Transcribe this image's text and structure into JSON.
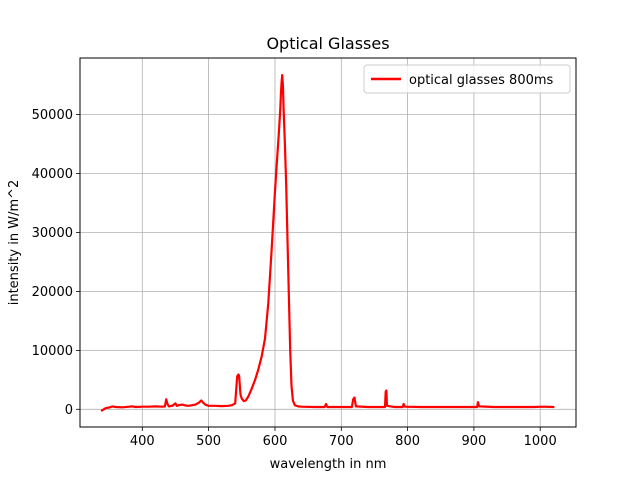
{
  "chart_data": {
    "type": "line",
    "title": "Optical Glasses",
    "xlabel": "wavelength in nm",
    "ylabel": "intensity in W/m^2",
    "xlim": [
      306,
      1054
    ],
    "ylim": [
      -3000,
      59600
    ],
    "xticks": [
      400,
      500,
      600,
      700,
      800,
      900,
      1000
    ],
    "yticks": [
      0,
      10000,
      20000,
      30000,
      40000,
      50000
    ],
    "grid": true,
    "legend_position": "top-right",
    "series": [
      {
        "name": "optical glasses 800ms",
        "color": "#ff0000",
        "points": [
          [
            339,
            -200
          ],
          [
            345,
            200
          ],
          [
            350,
            300
          ],
          [
            355,
            500
          ],
          [
            360,
            400
          ],
          [
            370,
            350
          ],
          [
            380,
            450
          ],
          [
            385,
            500
          ],
          [
            390,
            400
          ],
          [
            400,
            450
          ],
          [
            410,
            450
          ],
          [
            420,
            500
          ],
          [
            430,
            450
          ],
          [
            434,
            500
          ],
          [
            436,
            1700
          ],
          [
            438,
            900
          ],
          [
            440,
            500
          ],
          [
            445,
            600
          ],
          [
            450,
            1000
          ],
          [
            452,
            600
          ],
          [
            455,
            700
          ],
          [
            460,
            800
          ],
          [
            465,
            650
          ],
          [
            470,
            600
          ],
          [
            475,
            700
          ],
          [
            480,
            800
          ],
          [
            485,
            1100
          ],
          [
            489,
            1500
          ],
          [
            492,
            1100
          ],
          [
            495,
            800
          ],
          [
            500,
            600
          ],
          [
            510,
            600
          ],
          [
            520,
            550
          ],
          [
            530,
            600
          ],
          [
            535,
            700
          ],
          [
            540,
            1000
          ],
          [
            542,
            4000
          ],
          [
            543,
            5600
          ],
          [
            545,
            5900
          ],
          [
            546,
            5700
          ],
          [
            548,
            2500
          ],
          [
            550,
            1800
          ],
          [
            553,
            1400
          ],
          [
            556,
            1500
          ],
          [
            560,
            2200
          ],
          [
            565,
            3500
          ],
          [
            570,
            5000
          ],
          [
            575,
            6800
          ],
          [
            580,
            9000
          ],
          [
            585,
            12000
          ],
          [
            590,
            18000
          ],
          [
            595,
            27000
          ],
          [
            600,
            37000
          ],
          [
            603,
            42000
          ],
          [
            606,
            47000
          ],
          [
            608,
            51000
          ],
          [
            609,
            53500
          ],
          [
            610,
            55500
          ],
          [
            611,
            56700
          ],
          [
            612,
            55000
          ],
          [
            613,
            51000
          ],
          [
            615,
            45000
          ],
          [
            617,
            38000
          ],
          [
            619,
            28000
          ],
          [
            621,
            19000
          ],
          [
            623,
            10000
          ],
          [
            625,
            4000
          ],
          [
            627,
            1500
          ],
          [
            630,
            700
          ],
          [
            635,
            500
          ],
          [
            640,
            450
          ],
          [
            660,
            400
          ],
          [
            675,
            400
          ],
          [
            677,
            900
          ],
          [
            679,
            400
          ],
          [
            700,
            400
          ],
          [
            716,
            400
          ],
          [
            718,
            1700
          ],
          [
            720,
            2000
          ],
          [
            722,
            500
          ],
          [
            740,
            400
          ],
          [
            766,
            400
          ],
          [
            767,
            3000
          ],
          [
            768,
            3200
          ],
          [
            769,
            600
          ],
          [
            780,
            400
          ],
          [
            793,
            400
          ],
          [
            794,
            900
          ],
          [
            796,
            450
          ],
          [
            820,
            400
          ],
          [
            850,
            400
          ],
          [
            880,
            400
          ],
          [
            905,
            400
          ],
          [
            906,
            1200
          ],
          [
            908,
            500
          ],
          [
            930,
            400
          ],
          [
            960,
            400
          ],
          [
            990,
            400
          ],
          [
            1005,
            450
          ],
          [
            1020,
            400
          ]
        ]
      }
    ]
  }
}
